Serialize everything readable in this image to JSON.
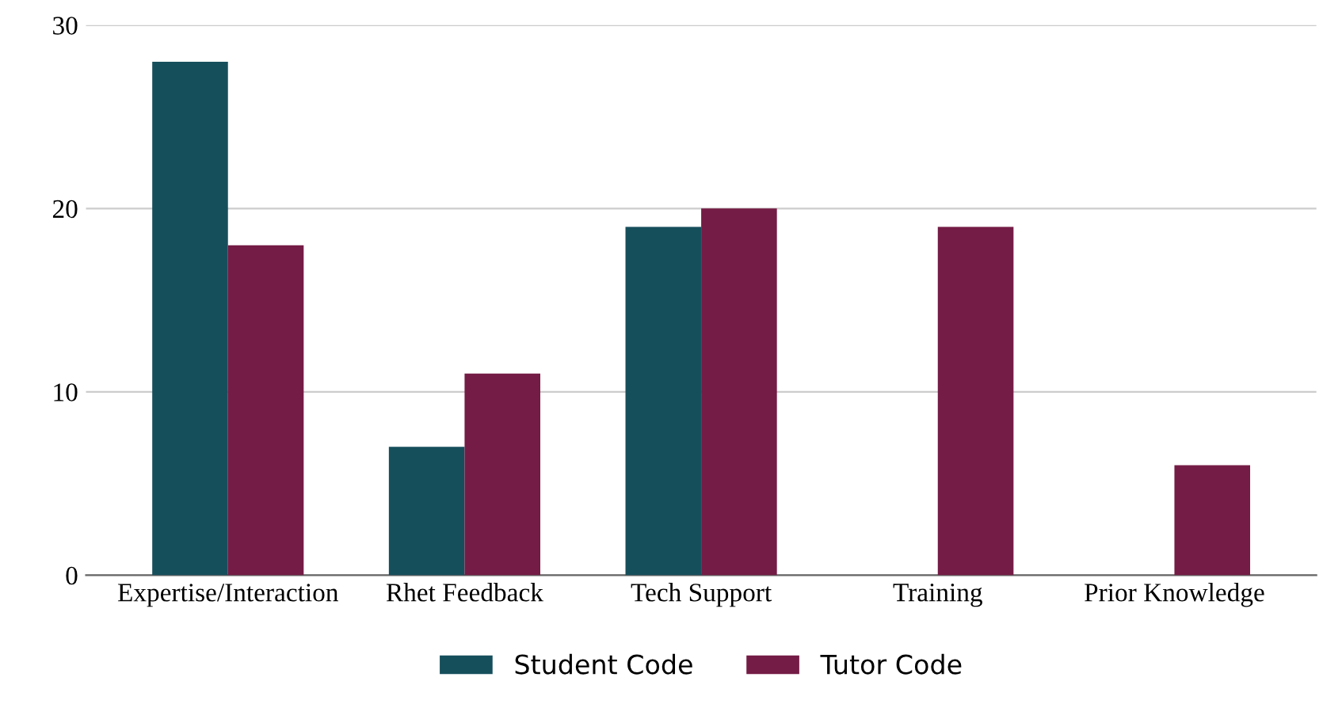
{
  "chart_data": {
    "type": "bar",
    "categories": [
      "Expertise/Interaction",
      "Rhet Feedback",
      "Tech Support",
      "Training",
      "Prior Knowledge"
    ],
    "series": [
      {
        "name": "Student Code",
        "color": "#164f5c",
        "values": [
          28,
          7,
          19,
          null,
          null
        ]
      },
      {
        "name": "Tutor Code",
        "color": "#741c45",
        "values": [
          18,
          11,
          20,
          19,
          6
        ]
      }
    ],
    "ylim": [
      0,
      30
    ],
    "yticks": [
      0,
      10,
      20,
      30
    ],
    "grid": "y",
    "legend": "bottom"
  }
}
